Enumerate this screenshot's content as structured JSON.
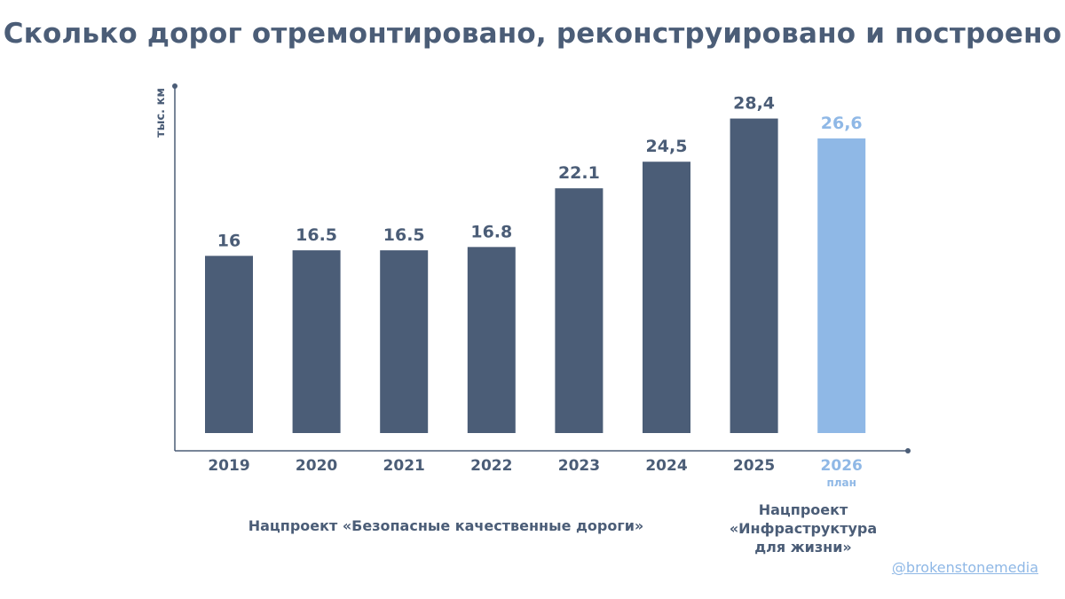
{
  "title": "Сколько дорог отремонтировано, реконструировано и построено",
  "colors": {
    "primary": "#4b5d77",
    "plan": "#8fb8e6",
    "axis": "#4b5d77"
  },
  "chart_data": {
    "type": "bar",
    "ylabel": "тыс. км",
    "categories": [
      "2019",
      "2020",
      "2021",
      "2022",
      "2023",
      "2024",
      "2025",
      "2026"
    ],
    "values": [
      16,
      16.5,
      16.5,
      16.8,
      22.1,
      24.5,
      28.4,
      26.6
    ],
    "data_labels": [
      "16",
      "16.5",
      "16.5",
      "16.8",
      "22.1",
      "24,5",
      "28,4",
      "26,6"
    ],
    "sublabels": [
      "",
      "",
      "",
      "",
      "",
      "",
      "",
      "план"
    ],
    "plan_flags": [
      false,
      false,
      false,
      false,
      false,
      false,
      false,
      true
    ],
    "ylim": [
      0,
      32
    ],
    "grid": false
  },
  "notes": {
    "left": "Нацпроект «Безопасные качественные дороги»",
    "right": [
      "Нацпроект",
      "«Инфраструктура",
      "для жизни»"
    ]
  },
  "credit": "@brokenstonemedia"
}
